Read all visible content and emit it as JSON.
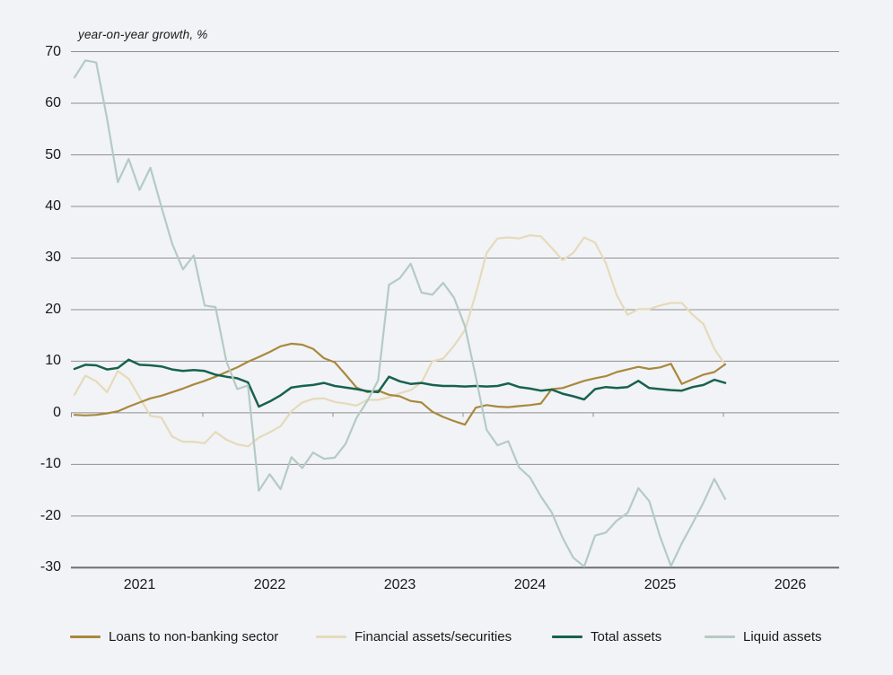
{
  "title": "year-on-year growth, %",
  "colors": {
    "background": "#f2f3f6",
    "gridline": "#8f8f8f",
    "axis_bottom": "#6e6e6e",
    "text": "#191919",
    "loans": "#a8893d",
    "financial": "#e5dabb",
    "total": "#17624e",
    "liquid": "#b4cbc3"
  },
  "legend": [
    {
      "label": "Loans to non-banking sector",
      "color": "#a8893d"
    },
    {
      "label": "Financial assets/securities",
      "color": "#e5dabb"
    },
    {
      "label": "Total assets",
      "color": "#17624e"
    },
    {
      "label": "Liquid assets",
      "color": "#b4cbc3"
    }
  ],
  "chart_data": {
    "type": "line",
    "title": "year-on-year growth, %",
    "xlabel": "",
    "ylabel": "year-on-year growth, %",
    "ylim": [
      -30,
      70
    ],
    "y_ticks": [
      70,
      60,
      50,
      40,
      30,
      20,
      10,
      0,
      -10,
      -20,
      -30
    ],
    "x_year_labels": [
      "2021",
      "2022",
      "2023",
      "2024",
      "2025",
      "2026"
    ],
    "x_start": "2020-07",
    "x_freq": "monthly",
    "n_points": 61,
    "grid": "horizontal",
    "legend_position": "bottom",
    "series": [
      {
        "name": "Loans to non-banking sector",
        "color": "#a8893d",
        "values": [
          -0.4,
          -0.5,
          -0.4,
          -0.1,
          0.3,
          1.2,
          2.0,
          2.8,
          3.3,
          4.0,
          4.7,
          5.5,
          6.2,
          7.0,
          7.9,
          8.8,
          9.9,
          10.8,
          11.8,
          12.9,
          13.4,
          13.2,
          12.4,
          10.6,
          9.8,
          7.4,
          4.9,
          4.0,
          4.3,
          3.5,
          3.2,
          2.3,
          2.0,
          0.2,
          -0.8,
          -1.6,
          -2.3,
          1.0,
          1.5,
          1.2,
          1.1,
          1.3,
          1.5,
          1.8,
          4.6,
          4.8,
          5.5,
          6.2,
          6.7,
          7.1,
          7.9,
          8.4,
          8.9,
          8.5,
          8.8,
          9.5,
          5.6,
          6.5,
          7.4,
          7.9,
          9.4
        ]
      },
      {
        "name": "Financial assets/securities",
        "color": "#e5dabb",
        "values": [
          3.5,
          7.2,
          6.1,
          4.0,
          8.1,
          6.6,
          3.0,
          -0.6,
          -0.9,
          -4.6,
          -5.6,
          -5.6,
          -5.9,
          -3.7,
          -5.2,
          -6.1,
          -6.5,
          -4.8,
          -3.8,
          -2.6,
          0.3,
          2.0,
          2.7,
          2.8,
          2.1,
          1.8,
          1.4,
          2.5,
          2.5,
          3.0,
          3.8,
          4.4,
          5.9,
          10.0,
          10.5,
          13.0,
          16.0,
          23.0,
          31.0,
          33.8,
          34.0,
          33.8,
          34.4,
          34.2,
          32.0,
          29.6,
          31.0,
          34.0,
          33.0,
          29.0,
          22.8,
          19.0,
          20.1,
          20.1,
          20.8,
          21.3,
          21.3,
          19.0,
          17.2,
          12.4,
          9.3
        ]
      },
      {
        "name": "Total assets",
        "color": "#17624e",
        "values": [
          8.5,
          9.3,
          9.2,
          8.4,
          8.7,
          10.3,
          9.3,
          9.2,
          9.0,
          8.4,
          8.1,
          8.3,
          8.1,
          7.4,
          7.0,
          6.7,
          5.9,
          1.2,
          2.2,
          3.4,
          4.9,
          5.2,
          5.4,
          5.8,
          5.2,
          4.9,
          4.6,
          4.2,
          4.0,
          7.0,
          6.1,
          5.6,
          5.8,
          5.4,
          5.2,
          5.2,
          5.1,
          5.2,
          5.1,
          5.2,
          5.7,
          5.0,
          4.7,
          4.3,
          4.5,
          3.7,
          3.2,
          2.6,
          4.6,
          5.0,
          4.8,
          5.0,
          6.2,
          4.8,
          4.6,
          4.4,
          4.3,
          5.0,
          5.4,
          6.4,
          5.8
        ]
      },
      {
        "name": "Liquid assets",
        "color": "#b4cbc3",
        "values": [
          65.0,
          68.3,
          67.9,
          57.0,
          44.7,
          49.2,
          43.2,
          47.5,
          40.0,
          32.8,
          27.8,
          30.5,
          20.8,
          20.5,
          10.0,
          4.6,
          5.3,
          -15.1,
          -11.9,
          -14.8,
          -8.6,
          -10.7,
          -7.7,
          -8.9,
          -8.7,
          -6.0,
          -1.0,
          2.3,
          6.3,
          24.8,
          26.1,
          28.9,
          23.3,
          22.9,
          25.2,
          22.3,
          16.8,
          7.0,
          -3.3,
          -6.3,
          -5.5,
          -10.6,
          -12.5,
          -16.2,
          -19.3,
          -24.2,
          -28.1,
          -29.8,
          -23.8,
          -23.2,
          -20.9,
          -19.4,
          -14.6,
          -17.1,
          -24.0,
          -29.7,
          -25.3,
          -21.4,
          -17.4,
          -12.8,
          -16.7
        ]
      }
    ]
  }
}
